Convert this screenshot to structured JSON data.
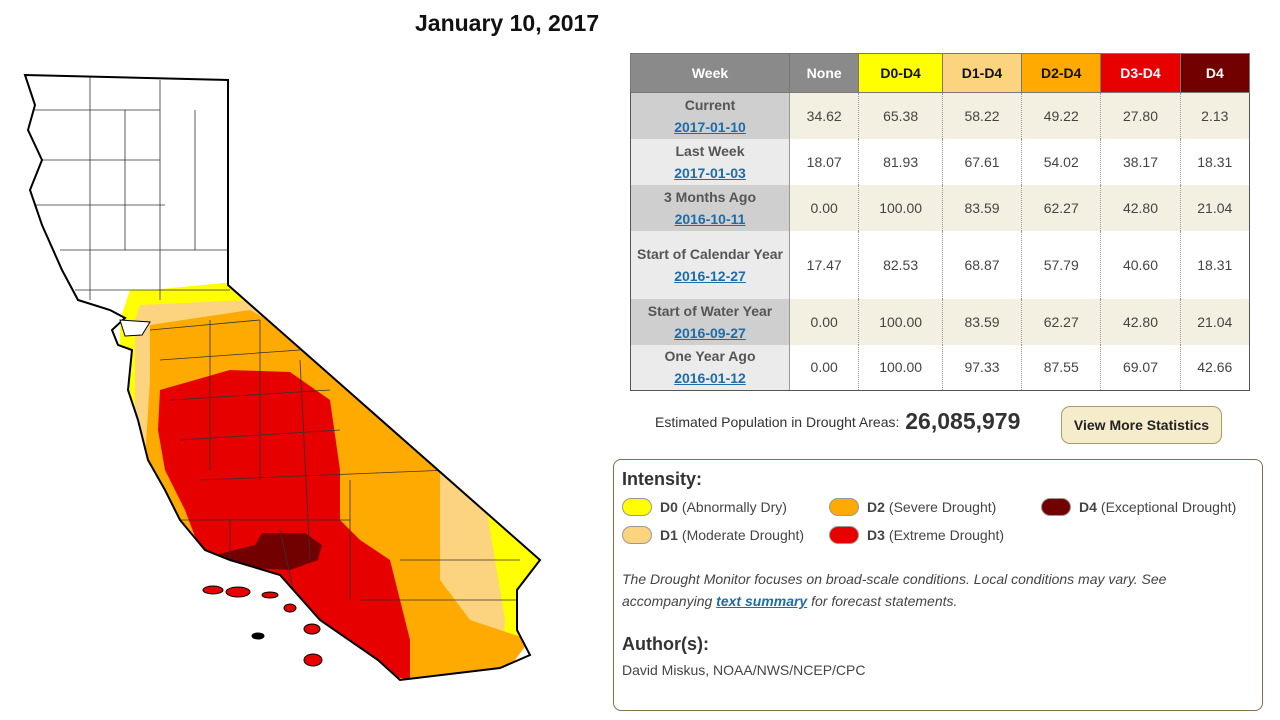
{
  "title": "January 10, 2017",
  "colors": {
    "none": "#ffffff",
    "d0": "#ffff00",
    "d1": "#fcd37f",
    "d2": "#ffaa00",
    "d3": "#e60000",
    "d4": "#730000"
  },
  "table": {
    "headers": [
      "Week",
      "None",
      "D0-D4",
      "D1-D4",
      "D2-D4",
      "D3-D4",
      "D4"
    ],
    "rows": [
      {
        "label": "Current",
        "date": "2017-01-10",
        "values": [
          "34.62",
          "65.38",
          "58.22",
          "49.22",
          "27.80",
          "2.13"
        ]
      },
      {
        "label": "Last Week",
        "date": "2017-01-03",
        "values": [
          "18.07",
          "81.93",
          "67.61",
          "54.02",
          "38.17",
          "18.31"
        ]
      },
      {
        "label": "3 Months Ago",
        "date": "2016-10-11",
        "values": [
          "0.00",
          "100.00",
          "83.59",
          "62.27",
          "42.80",
          "21.04"
        ]
      },
      {
        "label": "Start of Calendar Year",
        "date": "2016-12-27",
        "values": [
          "17.47",
          "82.53",
          "68.87",
          "57.79",
          "40.60",
          "18.31"
        ]
      },
      {
        "label": "Start of Water Year",
        "date": "2016-09-27",
        "values": [
          "0.00",
          "100.00",
          "83.59",
          "62.27",
          "42.80",
          "21.04"
        ]
      },
      {
        "label": "One Year Ago",
        "date": "2016-01-12",
        "values": [
          "0.00",
          "100.00",
          "97.33",
          "87.55",
          "69.07",
          "42.66"
        ]
      }
    ]
  },
  "population": {
    "label": "Estimated Population in Drought Areas:",
    "value": "26,085,979"
  },
  "view_more_button": "View More Statistics",
  "legend": {
    "title": "Intensity:",
    "items": [
      {
        "code": "D0",
        "desc": "(Abnormally Dry)",
        "color": "#ffff00"
      },
      {
        "code": "D1",
        "desc": "(Moderate Drought)",
        "color": "#fcd37f"
      },
      {
        "code": "D2",
        "desc": "(Severe Drought)",
        "color": "#ffaa00"
      },
      {
        "code": "D3",
        "desc": "(Extreme Drought)",
        "color": "#e60000"
      },
      {
        "code": "D4",
        "desc": "(Exceptional Drought)",
        "color": "#730000"
      }
    ],
    "note_before": "The Drought Monitor focuses on broad-scale conditions. Local conditions may vary. See accompanying ",
    "note_link": "text summary",
    "note_after": " for forecast statements.",
    "author_title": "Author(s):",
    "author": "David Miskus, NOAA/NWS/NCEP/CPC"
  }
}
